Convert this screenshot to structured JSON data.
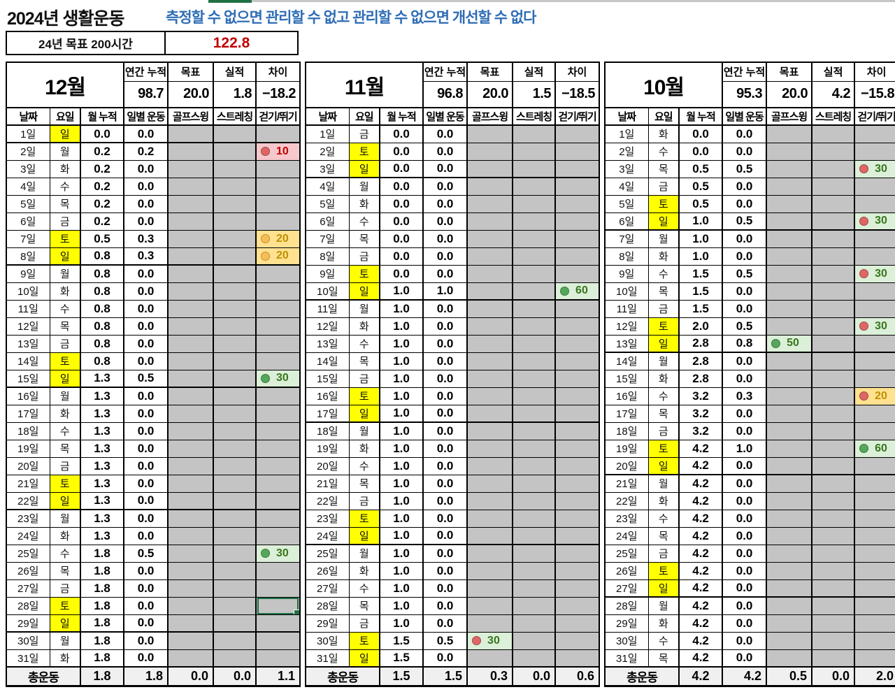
{
  "page": {
    "title": "2024년 생활운동",
    "subtitle": "측정할 수 없으면 관리할 수 없고 관리할 수 없으면 개선할 수 없다",
    "goal_label": "24년 목표 200시간",
    "goal_value": "122.8"
  },
  "summary_labels": [
    "연간 누적",
    "목표",
    "실적",
    "차이"
  ],
  "column_headers": [
    "날짜",
    "요일",
    "월 누적",
    "일별 운동",
    "골프스윙",
    "스트레칭",
    "걷기/뛰기"
  ],
  "total_label": "총운동",
  "weekend_days": [
    "토",
    "일"
  ],
  "dropdown_icon": "▼",
  "colors": {
    "subtitle_blue": "#2f6db5",
    "goal_red": "#c00000",
    "weekend_yellow": "#ffff00",
    "empty_cell_gray": "#c4c4c4",
    "green_cell": "#dcefd8",
    "pink_cell": "#f6c8cc",
    "yellow_cell": "#ffe18f",
    "dot_red": "#e06666",
    "dot_green": "#55a85b",
    "dot_orange": "#f3bf59",
    "selection_green": "#1e7145"
  },
  "months": [
    {
      "name": "12월",
      "summary": {
        "annual": "98.7",
        "goal": "20.0",
        "actual": "1.8",
        "diff": "−18.2"
      },
      "totals": [
        "1.8",
        "1.8",
        "0.0",
        "0.0",
        "1.1"
      ],
      "selected": {
        "row": "28일",
        "col": "walk"
      },
      "rows": [
        {
          "day": "1일",
          "wd": "일",
          "cum": "0.0",
          "daily": "0.0"
        },
        {
          "day": "2일",
          "wd": "월",
          "cum": "0.2",
          "daily": "0.2",
          "walk": {
            "bg": "pink",
            "dot": "red",
            "tc": "red",
            "value": "10"
          }
        },
        {
          "day": "3일",
          "wd": "화",
          "cum": "0.2",
          "daily": "0.0"
        },
        {
          "day": "4일",
          "wd": "수",
          "cum": "0.2",
          "daily": "0.0"
        },
        {
          "day": "5일",
          "wd": "목",
          "cum": "0.2",
          "daily": "0.0"
        },
        {
          "day": "6일",
          "wd": "금",
          "cum": "0.2",
          "daily": "0.0"
        },
        {
          "day": "7일",
          "wd": "토",
          "cum": "0.5",
          "daily": "0.3",
          "walk": {
            "bg": "yellow",
            "dot": "orange",
            "tc": "orange",
            "value": "20"
          }
        },
        {
          "day": "8일",
          "wd": "일",
          "cum": "0.8",
          "daily": "0.3",
          "walk": {
            "bg": "yellow",
            "dot": "orange",
            "tc": "orange",
            "value": "20"
          }
        },
        {
          "day": "9일",
          "wd": "월",
          "cum": "0.8",
          "daily": "0.0"
        },
        {
          "day": "10일",
          "wd": "화",
          "cum": "0.8",
          "daily": "0.0"
        },
        {
          "day": "11일",
          "wd": "수",
          "cum": "0.8",
          "daily": "0.0"
        },
        {
          "day": "12일",
          "wd": "목",
          "cum": "0.8",
          "daily": "0.0"
        },
        {
          "day": "13일",
          "wd": "금",
          "cum": "0.8",
          "daily": "0.0"
        },
        {
          "day": "14일",
          "wd": "토",
          "cum": "0.8",
          "daily": "0.0"
        },
        {
          "day": "15일",
          "wd": "일",
          "cum": "1.3",
          "daily": "0.5",
          "walk": {
            "bg": "green",
            "dot": "green",
            "tc": "green",
            "value": "30"
          }
        },
        {
          "day": "16일",
          "wd": "월",
          "cum": "1.3",
          "daily": "0.0"
        },
        {
          "day": "17일",
          "wd": "화",
          "cum": "1.3",
          "daily": "0.0"
        },
        {
          "day": "18일",
          "wd": "수",
          "cum": "1.3",
          "daily": "0.0"
        },
        {
          "day": "19일",
          "wd": "목",
          "cum": "1.3",
          "daily": "0.0"
        },
        {
          "day": "20일",
          "wd": "금",
          "cum": "1.3",
          "daily": "0.0"
        },
        {
          "day": "21일",
          "wd": "토",
          "cum": "1.3",
          "daily": "0.0"
        },
        {
          "day": "22일",
          "wd": "일",
          "cum": "1.3",
          "daily": "0.0"
        },
        {
          "day": "23일",
          "wd": "월",
          "cum": "1.3",
          "daily": "0.0"
        },
        {
          "day": "24일",
          "wd": "화",
          "cum": "1.3",
          "daily": "0.0"
        },
        {
          "day": "25일",
          "wd": "수",
          "cum": "1.8",
          "daily": "0.5",
          "walk": {
            "bg": "green",
            "dot": "green",
            "tc": "green",
            "value": "30"
          }
        },
        {
          "day": "26일",
          "wd": "목",
          "cum": "1.8",
          "daily": "0.0"
        },
        {
          "day": "27일",
          "wd": "금",
          "cum": "1.8",
          "daily": "0.0"
        },
        {
          "day": "28일",
          "wd": "토",
          "cum": "1.8",
          "daily": "0.0"
        },
        {
          "day": "29일",
          "wd": "일",
          "cum": "1.8",
          "daily": "0.0"
        },
        {
          "day": "30일",
          "wd": "월",
          "cum": "1.8",
          "daily": "0.0"
        },
        {
          "day": "31일",
          "wd": "화",
          "cum": "1.8",
          "daily": "0.0"
        }
      ]
    },
    {
      "name": "11월",
      "summary": {
        "annual": "96.8",
        "goal": "20.0",
        "actual": "1.5",
        "diff": "−18.5"
      },
      "totals": [
        "1.5",
        "1.5",
        "0.3",
        "0.0",
        "0.6"
      ],
      "selected": null,
      "rows": [
        {
          "day": "1일",
          "wd": "금",
          "cum": "0.0",
          "daily": "0.0"
        },
        {
          "day": "2일",
          "wd": "토",
          "cum": "0.0",
          "daily": "0.0"
        },
        {
          "day": "3일",
          "wd": "일",
          "cum": "0.0",
          "daily": "0.0"
        },
        {
          "day": "4일",
          "wd": "월",
          "cum": "0.0",
          "daily": "0.0"
        },
        {
          "day": "5일",
          "wd": "화",
          "cum": "0.0",
          "daily": "0.0"
        },
        {
          "day": "6일",
          "wd": "수",
          "cum": "0.0",
          "daily": "0.0"
        },
        {
          "day": "7일",
          "wd": "목",
          "cum": "0.0",
          "daily": "0.0"
        },
        {
          "day": "8일",
          "wd": "금",
          "cum": "0.0",
          "daily": "0.0"
        },
        {
          "day": "9일",
          "wd": "토",
          "cum": "0.0",
          "daily": "0.0"
        },
        {
          "day": "10일",
          "wd": "일",
          "cum": "1.0",
          "daily": "1.0",
          "walk": {
            "bg": "green",
            "dot": "green",
            "tc": "green",
            "value": "60"
          }
        },
        {
          "day": "11일",
          "wd": "월",
          "cum": "1.0",
          "daily": "0.0"
        },
        {
          "day": "12일",
          "wd": "화",
          "cum": "1.0",
          "daily": "0.0"
        },
        {
          "day": "13일",
          "wd": "수",
          "cum": "1.0",
          "daily": "0.0"
        },
        {
          "day": "14일",
          "wd": "목",
          "cum": "1.0",
          "daily": "0.0"
        },
        {
          "day": "15일",
          "wd": "금",
          "cum": "1.0",
          "daily": "0.0"
        },
        {
          "day": "16일",
          "wd": "토",
          "cum": "1.0",
          "daily": "0.0"
        },
        {
          "day": "17일",
          "wd": "일",
          "cum": "1.0",
          "daily": "0.0"
        },
        {
          "day": "18일",
          "wd": "월",
          "cum": "1.0",
          "daily": "0.0"
        },
        {
          "day": "19일",
          "wd": "화",
          "cum": "1.0",
          "daily": "0.0"
        },
        {
          "day": "20일",
          "wd": "수",
          "cum": "1.0",
          "daily": "0.0"
        },
        {
          "day": "21일",
          "wd": "목",
          "cum": "1.0",
          "daily": "0.0"
        },
        {
          "day": "22일",
          "wd": "금",
          "cum": "1.0",
          "daily": "0.0"
        },
        {
          "day": "23일",
          "wd": "토",
          "cum": "1.0",
          "daily": "0.0"
        },
        {
          "day": "24일",
          "wd": "일",
          "cum": "1.0",
          "daily": "0.0"
        },
        {
          "day": "25일",
          "wd": "월",
          "cum": "1.0",
          "daily": "0.0"
        },
        {
          "day": "26일",
          "wd": "화",
          "cum": "1.0",
          "daily": "0.0"
        },
        {
          "day": "27일",
          "wd": "수",
          "cum": "1.0",
          "daily": "0.0"
        },
        {
          "day": "28일",
          "wd": "목",
          "cum": "1.0",
          "daily": "0.0"
        },
        {
          "day": "29일",
          "wd": "금",
          "cum": "1.0",
          "daily": "0.0"
        },
        {
          "day": "30일",
          "wd": "토",
          "cum": "1.5",
          "daily": "0.5",
          "golf": {
            "bg": "green",
            "dot": "red",
            "tc": "green",
            "value": "30"
          }
        },
        {
          "day": "31일",
          "wd": "일",
          "cum": "1.5",
          "daily": "0.0"
        }
      ]
    },
    {
      "name": "10월",
      "summary": {
        "annual": "95.3",
        "goal": "20.0",
        "actual": "4.2",
        "diff": "−15.8"
      },
      "totals": [
        "4.2",
        "4.2",
        "0.5",
        "0.0",
        "2.0"
      ],
      "selected": null,
      "rows": [
        {
          "day": "1일",
          "wd": "화",
          "cum": "0.0",
          "daily": "0.0"
        },
        {
          "day": "2일",
          "wd": "수",
          "cum": "0.0",
          "daily": "0.0"
        },
        {
          "day": "3일",
          "wd": "목",
          "cum": "0.5",
          "daily": "0.5",
          "walk": {
            "bg": "green",
            "dot": "red",
            "tc": "green",
            "value": "30"
          }
        },
        {
          "day": "4일",
          "wd": "금",
          "cum": "0.5",
          "daily": "0.0"
        },
        {
          "day": "5일",
          "wd": "토",
          "cum": "0.5",
          "daily": "0.0"
        },
        {
          "day": "6일",
          "wd": "일",
          "cum": "1.0",
          "daily": "0.5",
          "walk": {
            "bg": "green",
            "dot": "red",
            "tc": "green",
            "value": "30"
          }
        },
        {
          "day": "7일",
          "wd": "월",
          "cum": "1.0",
          "daily": "0.0"
        },
        {
          "day": "8일",
          "wd": "화",
          "cum": "1.0",
          "daily": "0.0"
        },
        {
          "day": "9일",
          "wd": "수",
          "cum": "1.5",
          "daily": "0.5",
          "walk": {
            "bg": "green",
            "dot": "red",
            "tc": "green",
            "value": "30"
          }
        },
        {
          "day": "10일",
          "wd": "목",
          "cum": "1.5",
          "daily": "0.0"
        },
        {
          "day": "11일",
          "wd": "금",
          "cum": "1.5",
          "daily": "0.0"
        },
        {
          "day": "12일",
          "wd": "토",
          "cum": "2.0",
          "daily": "0.5",
          "walk": {
            "bg": "green",
            "dot": "red",
            "tc": "green",
            "value": "30"
          }
        },
        {
          "day": "13일",
          "wd": "일",
          "cum": "2.8",
          "daily": "0.8",
          "golf": {
            "bg": "green",
            "dot": "green",
            "tc": "green",
            "value": "50"
          }
        },
        {
          "day": "14일",
          "wd": "월",
          "cum": "2.8",
          "daily": "0.0"
        },
        {
          "day": "15일",
          "wd": "화",
          "cum": "2.8",
          "daily": "0.0"
        },
        {
          "day": "16일",
          "wd": "수",
          "cum": "3.2",
          "daily": "0.3",
          "walk": {
            "bg": "yellow",
            "dot": "red",
            "tc": "orange",
            "value": "20"
          }
        },
        {
          "day": "17일",
          "wd": "목",
          "cum": "3.2",
          "daily": "0.0"
        },
        {
          "day": "18일",
          "wd": "금",
          "cum": "3.2",
          "daily": "0.0"
        },
        {
          "day": "19일",
          "wd": "토",
          "cum": "4.2",
          "daily": "1.0",
          "walk": {
            "bg": "green",
            "dot": "green",
            "tc": "green",
            "value": "60"
          }
        },
        {
          "day": "20일",
          "wd": "일",
          "cum": "4.2",
          "daily": "0.0"
        },
        {
          "day": "21일",
          "wd": "월",
          "cum": "4.2",
          "daily": "0.0"
        },
        {
          "day": "22일",
          "wd": "화",
          "cum": "4.2",
          "daily": "0.0"
        },
        {
          "day": "23일",
          "wd": "수",
          "cum": "4.2",
          "daily": "0.0"
        },
        {
          "day": "24일",
          "wd": "목",
          "cum": "4.2",
          "daily": "0.0"
        },
        {
          "day": "25일",
          "wd": "금",
          "cum": "4.2",
          "daily": "0.0"
        },
        {
          "day": "26일",
          "wd": "토",
          "cum": "4.2",
          "daily": "0.0"
        },
        {
          "day": "27일",
          "wd": "일",
          "cum": "4.2",
          "daily": "0.0"
        },
        {
          "day": "28일",
          "wd": "월",
          "cum": "4.2",
          "daily": "0.0"
        },
        {
          "day": "29일",
          "wd": "화",
          "cum": "4.2",
          "daily": "0.0"
        },
        {
          "day": "30일",
          "wd": "수",
          "cum": "4.2",
          "daily": "0.0"
        },
        {
          "day": "31일",
          "wd": "목",
          "cum": "4.2",
          "daily": "0.0"
        }
      ]
    }
  ]
}
